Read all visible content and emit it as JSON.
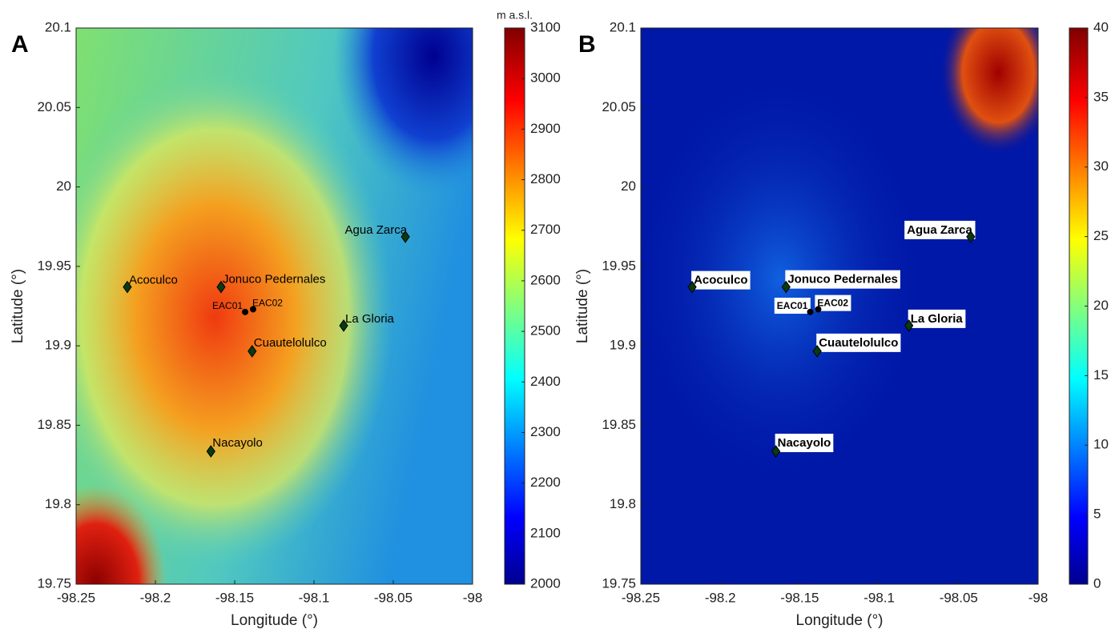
{
  "panels": [
    {
      "label": "A",
      "xlabel": "Longitude (°)",
      "ylabel": "Latitude (°)",
      "xlim": [
        -98.25,
        -98
      ],
      "ylim": [
        19.75,
        20.1
      ],
      "xticks": [
        -98.25,
        -98.2,
        -98.15,
        -98.1,
        -98.05,
        -98
      ],
      "yticks": [
        19.75,
        19.8,
        19.85,
        19.9,
        19.95,
        20,
        20.05,
        20.1
      ],
      "colorbar": {
        "title": "m a.s.l.",
        "lim": [
          2000,
          3100
        ],
        "ticks": [
          2000,
          2100,
          2200,
          2300,
          2400,
          2500,
          2600,
          2700,
          2800,
          2900,
          3000,
          3100
        ]
      },
      "sites": [
        {
          "name": "Agua Zarca",
          "lon": -98.0424,
          "lat": 19.9686,
          "marker": "diamond"
        },
        {
          "name": "Acoculco",
          "lon": -98.2177,
          "lat": 19.937,
          "marker": "diamond"
        },
        {
          "name": "Jonuco Pedernales",
          "lon": -98.1586,
          "lat": 19.937,
          "marker": "diamond"
        },
        {
          "name": "EAC01",
          "lon": -98.1434,
          "lat": 19.9213,
          "marker": "circle"
        },
        {
          "name": "EAC02",
          "lon": -98.1384,
          "lat": 19.923,
          "marker": "circle"
        },
        {
          "name": "La Gloria",
          "lon": -98.0813,
          "lat": 19.9127,
          "marker": "diamond"
        },
        {
          "name": "Cuautelolulco",
          "lon": -98.139,
          "lat": 19.8966,
          "marker": "diamond"
        },
        {
          "name": "Nacayolo",
          "lon": -98.165,
          "lat": 19.8336,
          "marker": "diamond"
        }
      ]
    },
    {
      "label": "B",
      "xlabel": "Longitude (°)",
      "ylabel": "Latitude (°)",
      "xlim": [
        -98.25,
        -98
      ],
      "ylim": [
        19.75,
        20.1
      ],
      "xticks": [
        -98.25,
        -98.2,
        -98.15,
        -98.1,
        -98.05,
        -98
      ],
      "yticks": [
        19.75,
        19.8,
        19.85,
        19.9,
        19.95,
        20,
        20.05,
        20.1
      ],
      "colorbar": {
        "lim": [
          0,
          40
        ],
        "ticks": [
          0,
          5,
          10,
          15,
          20,
          25,
          30,
          35,
          40
        ]
      },
      "sites": [
        {
          "name": "Agua Zarca",
          "lon": -98.0424,
          "lat": 19.9686,
          "marker": "diamond"
        },
        {
          "name": "Acoculco",
          "lon": -98.2177,
          "lat": 19.937,
          "marker": "diamond"
        },
        {
          "name": "Jonuco Pedernales",
          "lon": -98.1586,
          "lat": 19.937,
          "marker": "diamond"
        },
        {
          "name": "EAC01",
          "lon": -98.1434,
          "lat": 19.9213,
          "marker": "circle"
        },
        {
          "name": "EAC02",
          "lon": -98.1384,
          "lat": 19.923,
          "marker": "circle"
        },
        {
          "name": "La Gloria",
          "lon": -98.0813,
          "lat": 19.9127,
          "marker": "diamond"
        },
        {
          "name": "Cuautelolulco",
          "lon": -98.139,
          "lat": 19.8966,
          "marker": "diamond"
        },
        {
          "name": "Nacayolo",
          "lon": -98.165,
          "lat": 19.8336,
          "marker": "diamond"
        }
      ]
    }
  ]
}
